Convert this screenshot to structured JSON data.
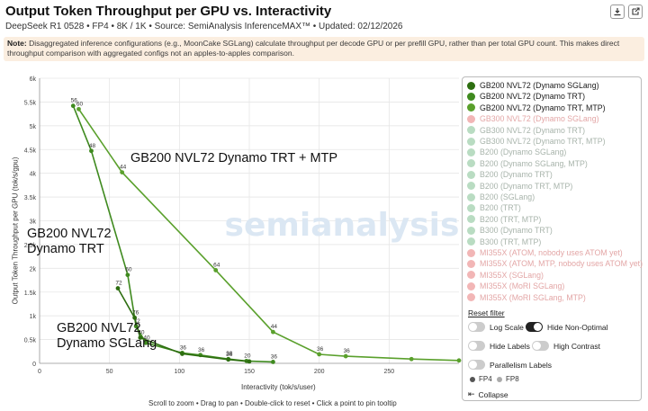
{
  "header": {
    "title": "Output Token Throughput per GPU vs. Interactivity",
    "subtitle": "DeepSeek R1 0528 • FP4 • 8K / 1K • Source: SemiAnalysis InferenceMAX™ • Updated: 02/12/2026",
    "download_icon": "download-icon",
    "export_icon": "export-icon"
  },
  "note": {
    "label": "Note:",
    "text": " Disaggregated inference configurations (e.g., MoonCake SGLang) calculate throughput per decode GPU or per prefill GPU, rather than per total GPU count. This makes direct throughput comparison with aggregated configs not an apples-to-apples comparison."
  },
  "chart_data": {
    "type": "line",
    "xlabel": "Interactivity (tok/s/user)",
    "ylabel": "Output Token Throughput per GPU (tok/s/gpu)",
    "xlim": [
      0,
      300
    ],
    "ylim": [
      0,
      6000
    ],
    "x_ticks": [
      "0",
      "50",
      "100",
      "150",
      "200",
      "250"
    ],
    "y_ticks": [
      "0",
      "0.5k",
      "1k",
      "1.5k",
      "2k",
      "2.5k",
      "3k",
      "3.5k",
      "4k",
      "4.5k",
      "5k",
      "5.5k",
      "6k"
    ],
    "grid": true,
    "watermark": "semianalysis",
    "series": [
      {
        "name": "GB200 NVL72 (Dynamo TRT, MTP)",
        "color": "#5aa02c",
        "annotation": "GB200 NVL72 Dynamo TRT + MTP",
        "points": [
          {
            "x": 28,
            "y": 5350,
            "label": "60"
          },
          {
            "x": 59,
            "y": 4020,
            "label": "44"
          },
          {
            "x": 126,
            "y": 1960,
            "label": "64"
          },
          {
            "x": 167,
            "y": 660,
            "label": "44"
          },
          {
            "x": 200,
            "y": 190,
            "label": "36"
          },
          {
            "x": 219,
            "y": 150,
            "label": "36"
          },
          {
            "x": 266,
            "y": 90,
            "label": ""
          },
          {
            "x": 300,
            "y": 60,
            "label": ""
          }
        ]
      },
      {
        "name": "GB200 NVL72 (Dynamo TRT)",
        "color": "#3f8a1f",
        "annotation": "GB200 NVL72 Dynamo TRT",
        "points": [
          {
            "x": 24,
            "y": 5420,
            "label": "56"
          },
          {
            "x": 37,
            "y": 4470,
            "label": "48"
          },
          {
            "x": 63,
            "y": 1860,
            "label": "60"
          },
          {
            "x": 69,
            "y": 780,
            "label": "72"
          },
          {
            "x": 76,
            "y": 430,
            "label": "40"
          },
          {
            "x": 102,
            "y": 220,
            "label": "36"
          },
          {
            "x": 115,
            "y": 175,
            "label": "36"
          },
          {
            "x": 135,
            "y": 90,
            "label": "38"
          },
          {
            "x": 148,
            "y": 50,
            "label": "20"
          },
          {
            "x": 167,
            "y": 30,
            "label": "36"
          }
        ]
      },
      {
        "name": "GB200 NVL72 (Dynamo SGLang)",
        "color": "#2d6e10",
        "annotation": "GB200 NVL72 Dynamo SGLang",
        "points": [
          {
            "x": 56,
            "y": 1580,
            "label": "72"
          },
          {
            "x": 68,
            "y": 960,
            "label": "76"
          },
          {
            "x": 72,
            "y": 540,
            "label": "40"
          },
          {
            "x": 102,
            "y": 200,
            "label": ""
          },
          {
            "x": 135,
            "y": 80,
            "label": "36"
          },
          {
            "x": 150,
            "y": 40,
            "label": ""
          }
        ]
      }
    ]
  },
  "legend": {
    "items": [
      {
        "label": "GB200 NVL72 (Dynamo SGLang)",
        "color": "#2d6e10",
        "active": true
      },
      {
        "label": "GB200 NVL72 (Dynamo TRT)",
        "color": "#3f8a1f",
        "active": true
      },
      {
        "label": "GB200 NVL72 (Dynamo TRT, MTP)",
        "color": "#5aa02c",
        "active": true
      },
      {
        "label": "GB300 NVL72 (Dynamo SGLang)",
        "color": "#f2b6b6",
        "active": false
      },
      {
        "label": "GB300 NVL72 (Dynamo TRT)",
        "color": "#b9dcc2",
        "active": false
      },
      {
        "label": "GB300 NVL72 (Dynamo TRT, MTP)",
        "color": "#b9dcc2",
        "active": false
      },
      {
        "label": "B200 (Dynamo SGLang)",
        "color": "#b9dcc2",
        "active": false
      },
      {
        "label": "B200 (Dynamo SGLang, MTP)",
        "color": "#b9dcc2",
        "active": false
      },
      {
        "label": "B200 (Dynamo TRT)",
        "color": "#b9dcc2",
        "active": false
      },
      {
        "label": "B200 (Dynamo TRT, MTP)",
        "color": "#b9dcc2",
        "active": false
      },
      {
        "label": "B200 (SGLang)",
        "color": "#b9dcc2",
        "active": false
      },
      {
        "label": "B200 (TRT)",
        "color": "#b9dcc2",
        "active": false
      },
      {
        "label": "B200 (TRT, MTP)",
        "color": "#b9dcc2",
        "active": false
      },
      {
        "label": "B300 (Dynamo TRT)",
        "color": "#b9dcc2",
        "active": false
      },
      {
        "label": "B300 (TRT, MTP)",
        "color": "#b9dcc2",
        "active": false
      },
      {
        "label": "MI355X (ATOM, nobody uses ATOM yet)",
        "color": "#f2b6b6",
        "active": false
      },
      {
        "label": "MI355X (ATOM, MTP, nobody uses ATOM yet)",
        "color": "#f2b6b6",
        "active": false
      },
      {
        "label": "MI355X (SGLang)",
        "color": "#f2b6b6",
        "active": false
      },
      {
        "label": "MI355X (MoRI SGLang)",
        "color": "#f2b6b6",
        "active": false
      },
      {
        "label": "MI355X (MoRI SGLang, MTP)",
        "color": "#f2b6b6",
        "active": false
      }
    ],
    "reset_label": "Reset filter",
    "toggles": {
      "log_scale": {
        "label": "Log Scale",
        "on": false
      },
      "hide_non_optimal": {
        "label": "Hide Non-Optimal",
        "on": true
      },
      "hide_labels": {
        "label": "Hide Labels",
        "on": false
      },
      "high_contrast": {
        "label": "High Contrast",
        "on": false
      },
      "parallelism_labels": {
        "label": "Parallelism Labels",
        "on": false
      }
    },
    "precision": [
      {
        "label": "FP4",
        "color": "#555555"
      },
      {
        "label": "FP8",
        "color": "#aaaaaa"
      }
    ],
    "collapse_label": "Collapse",
    "collapse_icon": "chevron-left-icon"
  },
  "footer": {
    "hint": "Scroll to zoom • Drag to pan • Double-click to reset • Click a point to pin tooltip"
  }
}
